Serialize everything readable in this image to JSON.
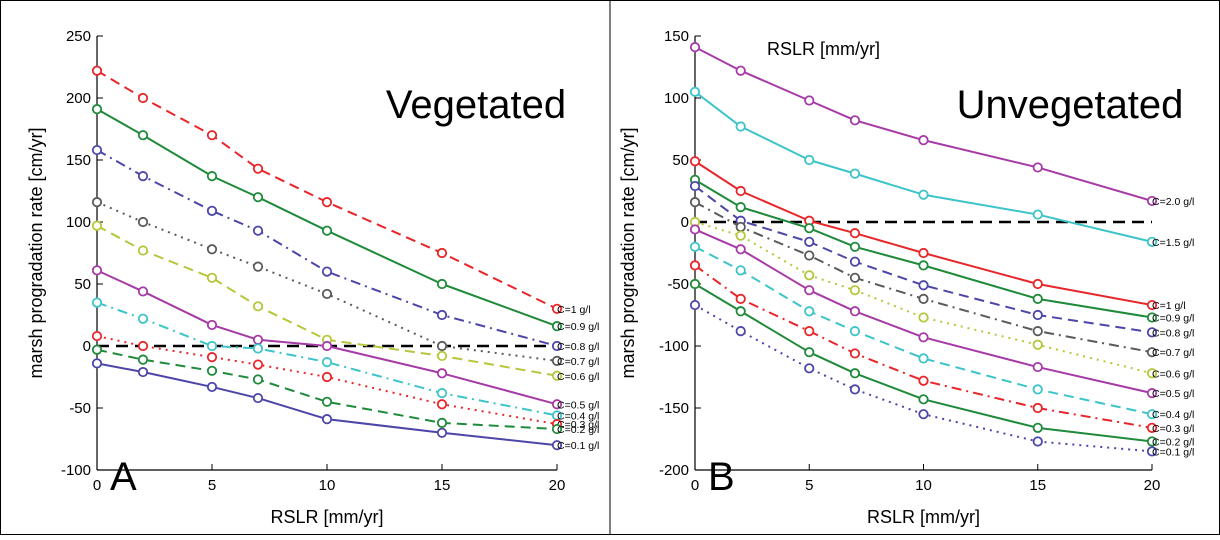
{
  "chart_data": [
    {
      "type": "line",
      "panel_letter": "A",
      "title_inside": "Vegetated",
      "xlabel": "RSLR [mm/yr]",
      "ylabel": "marsh progradation rate [cm/yr]",
      "xlim": [
        0,
        20
      ],
      "ylim": [
        -100,
        250
      ],
      "xticks": [
        "0",
        "5",
        "10",
        "15",
        "20"
      ],
      "yticks": [
        "-100",
        "-50",
        "0",
        "50",
        "100",
        "150",
        "200",
        "250"
      ],
      "zero_line": true,
      "series": [
        {
          "name": "C=1 g/l",
          "color": "#e8262a",
          "dash": "dashed",
          "x": [
            0,
            2,
            5,
            7,
            10,
            15,
            20
          ],
          "values": [
            222,
            200,
            170,
            143,
            116,
            75,
            30
          ]
        },
        {
          "name": "C=0.9 g/l",
          "color": "#1f8a3a",
          "dash": "solid",
          "x": [
            0,
            2,
            5,
            7,
            10,
            15,
            20
          ],
          "values": [
            191,
            170,
            137,
            120,
            93,
            50,
            16
          ]
        },
        {
          "name": "C=0.8 g/l",
          "color": "#4b46a8",
          "dash": "dashdot",
          "x": [
            0,
            2,
            5,
            7,
            10,
            15,
            20
          ],
          "values": [
            158,
            137,
            109,
            93,
            60,
            25,
            0
          ]
        },
        {
          "name": "C=0.7 g/l",
          "color": "#5a5a5a",
          "dash": "dotted",
          "x": [
            0,
            2,
            5,
            7,
            10,
            15,
            20
          ],
          "values": [
            116,
            100,
            78,
            64,
            42,
            0,
            -12
          ]
        },
        {
          "name": "C=0.6 g/l",
          "color": "#b7c63a",
          "dash": "dashed",
          "x": [
            0,
            2,
            5,
            7,
            10,
            15,
            20
          ],
          "values": [
            97,
            77,
            55,
            32,
            5,
            -8,
            -24
          ]
        },
        {
          "name": "C=0.5 g/l",
          "color": "#a63aa6",
          "dash": "solid",
          "x": [
            0,
            2,
            5,
            7,
            10,
            15,
            20
          ],
          "values": [
            61,
            44,
            17,
            5,
            0,
            -22,
            -47
          ]
        },
        {
          "name": "C=0.4 g/l",
          "color": "#3cc4c9",
          "dash": "dashdot",
          "x": [
            0,
            2,
            5,
            7,
            10,
            15,
            20
          ],
          "values": [
            35,
            22,
            0,
            -2,
            -13,
            -38,
            -56
          ]
        },
        {
          "name": "C=0.3 g/l",
          "color": "#e8262a",
          "dash": "dotted",
          "x": [
            0,
            2,
            5,
            7,
            10,
            15,
            20
          ],
          "values": [
            8,
            0,
            -9,
            -15,
            -25,
            -47,
            -63
          ]
        },
        {
          "name": "C=0.2 g/l",
          "color": "#1f8a3a",
          "dash": "dashed",
          "x": [
            0,
            2,
            5,
            7,
            10,
            15,
            20
          ],
          "values": [
            -3,
            -11,
            -20,
            -27,
            -45,
            -62,
            -67
          ]
        },
        {
          "name": "C=0.1 g/l",
          "color": "#4b46a8",
          "dash": "solid",
          "x": [
            0,
            2,
            5,
            7,
            10,
            15,
            20
          ],
          "values": [
            -14,
            -21,
            -33,
            -42,
            -59,
            -70,
            -80
          ]
        }
      ]
    },
    {
      "type": "line",
      "panel_letter": "B",
      "title_inside": "Unvegetated",
      "top_label": "RSLR [mm/yr]",
      "xlabel": "RSLR [mm/yr]",
      "ylabel": "marsh progradation rate [cm/yr]",
      "xlim": [
        0,
        20
      ],
      "ylim": [
        -200,
        150
      ],
      "xticks": [
        "0",
        "5",
        "10",
        "15",
        "20"
      ],
      "yticks": [
        "-200",
        "-150",
        "-100",
        "-50",
        "0",
        "50",
        "100",
        "150"
      ],
      "zero_line": true,
      "series": [
        {
          "name": "C=2.0 g/l",
          "color": "#a63aa6",
          "dash": "solid",
          "x": [
            0,
            2,
            5,
            7,
            10,
            15,
            20
          ],
          "values": [
            141,
            122,
            98,
            82,
            66,
            44,
            17
          ]
        },
        {
          "name": "C=1.5 g/l",
          "color": "#3cc4c9",
          "dash": "solid",
          "x": [
            0,
            2,
            5,
            7,
            10,
            15,
            20
          ],
          "values": [
            105,
            77,
            50,
            39,
            22,
            6,
            -16
          ]
        },
        {
          "name": "C=1 g/l",
          "color": "#e8262a",
          "dash": "solid",
          "x": [
            0,
            2,
            5,
            7,
            10,
            15,
            20
          ],
          "values": [
            49,
            25,
            1,
            -9,
            -25,
            -50,
            -67
          ]
        },
        {
          "name": "C=0.9 g/l",
          "color": "#1f8a3a",
          "dash": "solid",
          "x": [
            0,
            2,
            5,
            7,
            10,
            15,
            20
          ],
          "values": [
            34,
            12,
            -5,
            -20,
            -35,
            -62,
            -77
          ]
        },
        {
          "name": "C=0.8 g/l",
          "color": "#4b46a8",
          "dash": "dashed",
          "x": [
            0,
            2,
            5,
            7,
            10,
            15,
            20
          ],
          "values": [
            29,
            1,
            -16,
            -32,
            -51,
            -75,
            -89
          ]
        },
        {
          "name": "C=0.7 g/l",
          "color": "#5a5a5a",
          "dash": "dashdot",
          "x": [
            0,
            2,
            5,
            7,
            10,
            15,
            20
          ],
          "values": [
            16,
            -4,
            -27,
            -45,
            -62,
            -88,
            -105
          ]
        },
        {
          "name": "C=0.6 g/l",
          "color": "#b7c63a",
          "dash": "dotted",
          "x": [
            0,
            2,
            5,
            7,
            10,
            15,
            20
          ],
          "values": [
            0,
            -11,
            -43,
            -55,
            -77,
            -99,
            -122
          ]
        },
        {
          "name": "C=0.5 g/l",
          "color": "#a63aa6",
          "dash": "solid",
          "x": [
            0,
            2,
            5,
            7,
            10,
            15,
            20
          ],
          "values": [
            -6,
            -22,
            -55,
            -72,
            -93,
            -117,
            -138
          ]
        },
        {
          "name": "C=0.4 g/l",
          "color": "#3cc4c9",
          "dash": "dashed",
          "x": [
            0,
            2,
            5,
            7,
            10,
            15,
            20
          ],
          "values": [
            -20,
            -39,
            -72,
            -88,
            -110,
            -135,
            -155
          ]
        },
        {
          "name": "C=0.3 g/l",
          "color": "#e8262a",
          "dash": "dashdot",
          "x": [
            0,
            2,
            5,
            7,
            10,
            15,
            20
          ],
          "values": [
            -35,
            -62,
            -88,
            -106,
            -128,
            -150,
            -166
          ]
        },
        {
          "name": "C=0.2 g/l",
          "color": "#1f8a3a",
          "dash": "solid",
          "x": [
            0,
            2,
            5,
            7,
            10,
            15,
            20
          ],
          "values": [
            -50,
            -72,
            -105,
            -122,
            -143,
            -166,
            -177
          ]
        },
        {
          "name": "C=0.1 g/l",
          "color": "#4b46a8",
          "dash": "dotted",
          "x": [
            0,
            2,
            5,
            7,
            10,
            15,
            20
          ],
          "values": [
            -67,
            -88,
            -118,
            -135,
            -155,
            -177,
            -185
          ]
        }
      ]
    }
  ]
}
